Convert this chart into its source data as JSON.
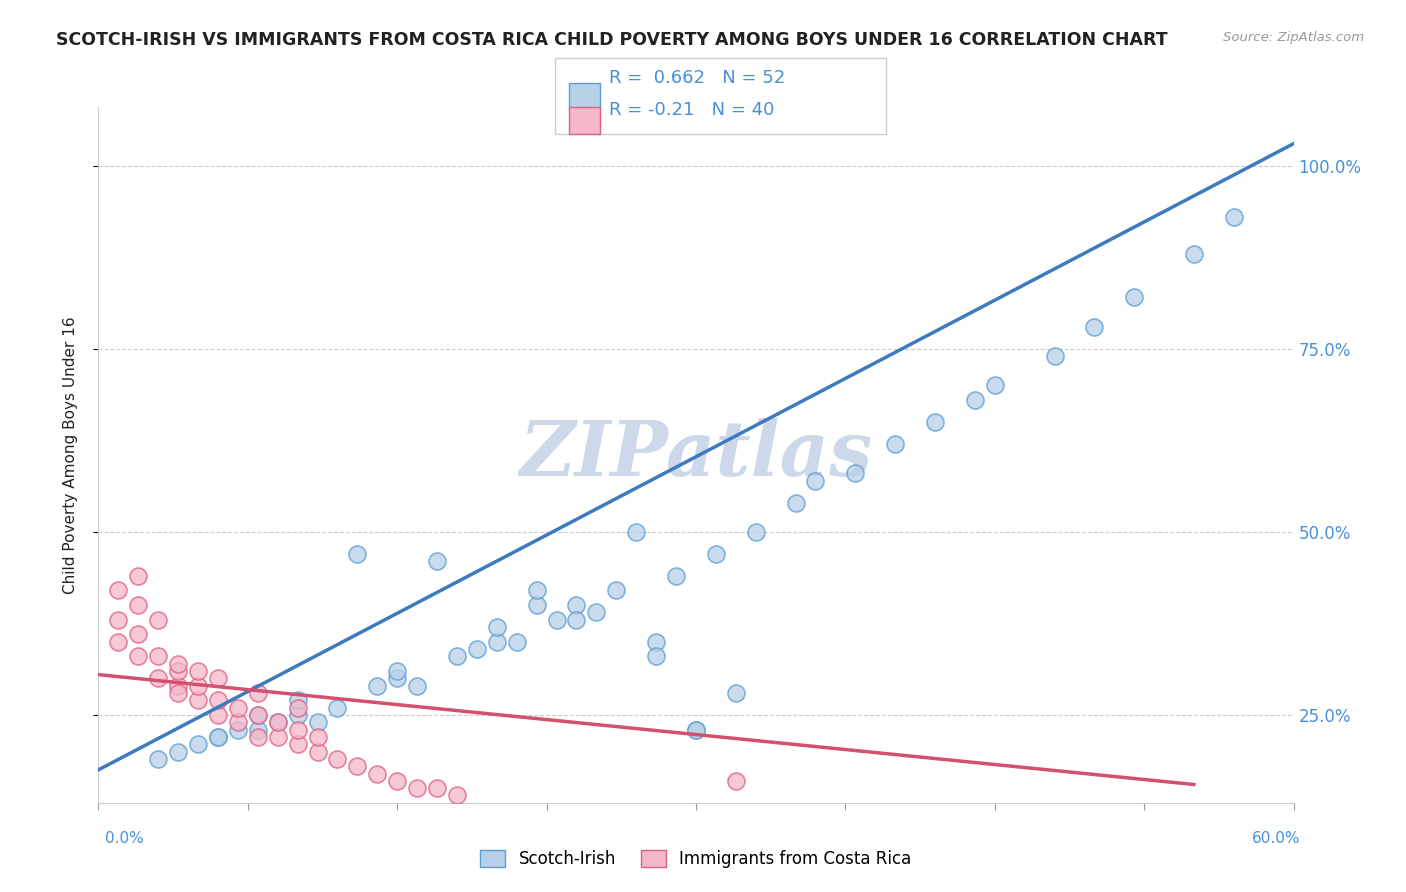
{
  "title": "SCOTCH-IRISH VS IMMIGRANTS FROM COSTA RICA CHILD POVERTY AMONG BOYS UNDER 16 CORRELATION CHART",
  "source": "Source: ZipAtlas.com",
  "ylabel": "Child Poverty Among Boys Under 16",
  "xmin": 0.0,
  "xmax": 0.6,
  "ymin": 0.13,
  "ymax": 1.08,
  "yticks": [
    0.25,
    0.5,
    0.75,
    1.0
  ],
  "ytick_labels": [
    "25.0%",
    "50.0%",
    "75.0%",
    "100.0%"
  ],
  "blue_R": 0.662,
  "blue_N": 52,
  "pink_R": -0.21,
  "pink_N": 40,
  "legend_label_blue": "Scotch-Irish",
  "legend_label_pink": "Immigrants from Costa Rica",
  "blue_color": "#b8d0e8",
  "blue_edge_color": "#5a9fd4",
  "blue_line_color": "#3d7abf",
  "pink_color": "#f5b8c8",
  "pink_edge_color": "#e06080",
  "pink_line_color": "#d45070",
  "title_color": "#222222",
  "source_color": "#999999",
  "axis_color": "#cccccc",
  "grid_color": "#cccccc",
  "tick_color": "#999999",
  "background_color": "#ffffff",
  "watermark_color": "#cdd8ea",
  "rn_text_color": "#4a90d9",
  "rn_label_color": "#333333",
  "blue_scatter_x": [
    0.03,
    0.05,
    0.06,
    0.07,
    0.08,
    0.09,
    0.1,
    0.11,
    0.12,
    0.13,
    0.14,
    0.15,
    0.16,
    0.17,
    0.18,
    0.19,
    0.2,
    0.21,
    0.22,
    0.23,
    0.24,
    0.25,
    0.26,
    0.27,
    0.28,
    0.29,
    0.3,
    0.31,
    0.32,
    0.33,
    0.35,
    0.36,
    0.38,
    0.4,
    0.42,
    0.44,
    0.45,
    0.48,
    0.5,
    0.52,
    0.55,
    0.57,
    0.04,
    0.06,
    0.08,
    0.1,
    0.22,
    0.24,
    0.15,
    0.2,
    0.3,
    0.28
  ],
  "blue_scatter_y": [
    0.19,
    0.21,
    0.22,
    0.23,
    0.23,
    0.24,
    0.25,
    0.24,
    0.26,
    0.47,
    0.29,
    0.3,
    0.29,
    0.46,
    0.33,
    0.34,
    0.35,
    0.35,
    0.4,
    0.38,
    0.4,
    0.39,
    0.42,
    0.5,
    0.35,
    0.44,
    0.23,
    0.47,
    0.28,
    0.5,
    0.54,
    0.57,
    0.58,
    0.62,
    0.65,
    0.68,
    0.7,
    0.74,
    0.78,
    0.82,
    0.88,
    0.93,
    0.2,
    0.22,
    0.25,
    0.27,
    0.42,
    0.38,
    0.31,
    0.37,
    0.23,
    0.33
  ],
  "pink_scatter_x": [
    0.01,
    0.01,
    0.02,
    0.02,
    0.03,
    0.03,
    0.04,
    0.04,
    0.04,
    0.05,
    0.05,
    0.06,
    0.06,
    0.07,
    0.07,
    0.08,
    0.08,
    0.09,
    0.09,
    0.1,
    0.1,
    0.11,
    0.11,
    0.12,
    0.13,
    0.14,
    0.15,
    0.16,
    0.17,
    0.18,
    0.02,
    0.03,
    0.04,
    0.05,
    0.06,
    0.08,
    0.1,
    0.32,
    0.01,
    0.02
  ],
  "pink_scatter_y": [
    0.35,
    0.38,
    0.33,
    0.36,
    0.3,
    0.33,
    0.29,
    0.31,
    0.28,
    0.27,
    0.29,
    0.25,
    0.27,
    0.24,
    0.26,
    0.22,
    0.25,
    0.22,
    0.24,
    0.21,
    0.23,
    0.2,
    0.22,
    0.19,
    0.18,
    0.17,
    0.16,
    0.15,
    0.15,
    0.14,
    0.4,
    0.38,
    0.32,
    0.31,
    0.3,
    0.28,
    0.26,
    0.16,
    0.42,
    0.44
  ],
  "blue_line_x0": 0.0,
  "blue_line_x1": 0.6,
  "blue_line_y0": 0.175,
  "blue_line_y1": 1.03,
  "pink_line_x0": 0.0,
  "pink_line_x1": 0.55,
  "pink_line_y0": 0.305,
  "pink_line_y1": 0.155
}
